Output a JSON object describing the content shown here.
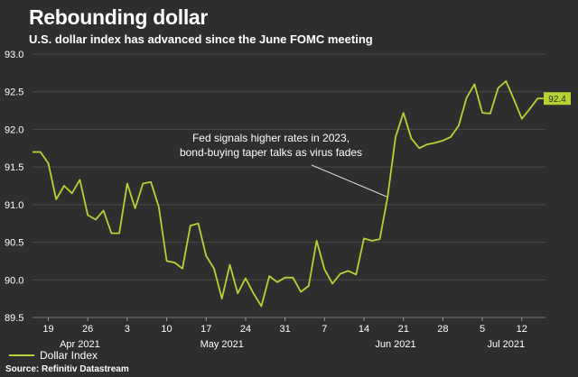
{
  "title": "Rebounding dollar",
  "subtitle": "U.S. dollar index has advanced since the June FOMC meeting",
  "source": "Source: Refinitiv Datastream",
  "colors": {
    "background": "#2e2e2e",
    "line": "#b5d334",
    "grid": "#484848",
    "text": "#ffffff",
    "annotation": "#dddddd"
  },
  "chart_data": {
    "type": "line",
    "title": "Rebounding dollar",
    "ylim": [
      89.5,
      93.0
    ],
    "yticks": [
      "89.5",
      "90.0",
      "90.5",
      "91.0",
      "91.5",
      "92.0",
      "92.5",
      "93.0"
    ],
    "xticks": [
      "19",
      "26",
      "3",
      "10",
      "17",
      "24",
      "31",
      "7",
      "14",
      "21",
      "28",
      "5",
      "12"
    ],
    "month_labels": [
      "Apr 2021",
      "May 2021",
      "Jun 2021",
      "Jul 2021"
    ],
    "legend": "Dollar Index",
    "end_label": "92.4",
    "annotation": [
      "Fed signals higher rates in 2023,",
      "bond-buying taper talks as virus fades"
    ],
    "annotation_point": {
      "date": "Jun 16",
      "value": 91.1
    },
    "series": [
      {
        "name": "Dollar Index",
        "values": [
          91.7,
          91.7,
          91.55,
          91.07,
          91.25,
          91.15,
          91.33,
          90.86,
          90.8,
          90.92,
          90.62,
          90.62,
          91.28,
          90.95,
          91.28,
          91.3,
          90.97,
          90.25,
          90.23,
          90.15,
          90.72,
          90.75,
          90.32,
          90.15,
          89.75,
          90.2,
          89.82,
          90.02,
          89.82,
          89.65,
          90.05,
          89.97,
          90.03,
          90.03,
          89.84,
          89.92,
          90.52,
          90.14,
          89.95,
          90.08,
          90.12,
          90.07,
          90.55,
          90.52,
          90.54,
          91.1,
          91.9,
          92.22,
          91.88,
          91.75,
          91.8,
          91.82,
          91.85,
          91.9,
          92.05,
          92.42,
          92.6,
          92.22,
          92.21,
          92.55,
          92.64,
          92.4,
          92.14,
          92.27,
          92.41,
          92.41
        ]
      }
    ]
  }
}
